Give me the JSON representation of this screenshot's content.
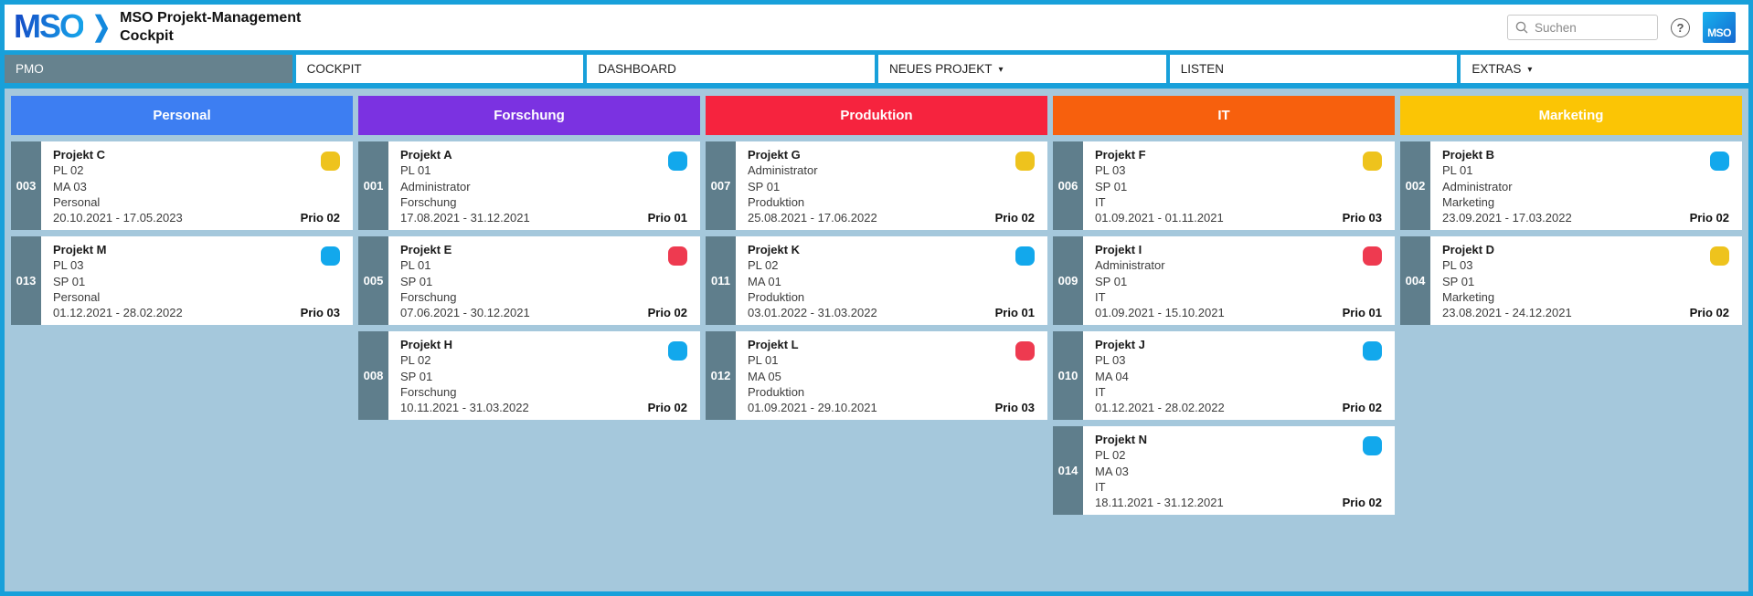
{
  "header": {
    "logo": "MSO",
    "title_line1": "MSO Projekt-Management",
    "title_line2": "Cockpit",
    "search_placeholder": "Suchen",
    "help_label": "?",
    "badge": "MSO"
  },
  "nav": {
    "items": [
      {
        "label": "PMO",
        "active": true,
        "dropdown": false
      },
      {
        "label": "COCKPIT",
        "active": false,
        "dropdown": false
      },
      {
        "label": "DASHBOARD",
        "active": false,
        "dropdown": false
      },
      {
        "label": "NEUES PROJEKT",
        "active": false,
        "dropdown": true
      },
      {
        "label": "LISTEN",
        "active": false,
        "dropdown": false
      },
      {
        "label": "EXTRAS",
        "active": false,
        "dropdown": true
      }
    ]
  },
  "colors": {
    "chrome_blue": "#18a0da",
    "board_background": "#a5c8dc",
    "badge_strip": "#5f7e8c",
    "status_yellow": "#eec31d",
    "status_blue": "#12a8ec",
    "status_red": "#ee3a50"
  },
  "board": {
    "columns": [
      {
        "title": "Personal",
        "color": "#3d7ef2",
        "cards": [
          {
            "id": "003",
            "title": "Projekt C",
            "lines": [
              "PL 02",
              "MA 03",
              "Personal"
            ],
            "dates": "20.10.2021 - 17.05.2023",
            "prio": "Prio 02",
            "status": "yellow",
            "status_color": "#eec31d"
          },
          {
            "id": "013",
            "title": "Projekt M",
            "lines": [
              "PL 03",
              "SP 01",
              "Personal"
            ],
            "dates": "01.12.2021 - 28.02.2022",
            "prio": "Prio 03",
            "status": "blue",
            "status_color": "#12a8ec"
          }
        ]
      },
      {
        "title": "Forschung",
        "color": "#7b32e1",
        "cards": [
          {
            "id": "001",
            "title": "Projekt A",
            "lines": [
              "PL 01",
              "Administrator",
              "Forschung"
            ],
            "dates": "17.08.2021 - 31.12.2021",
            "prio": "Prio 01",
            "status": "blue",
            "status_color": "#12a8ec"
          },
          {
            "id": "005",
            "title": "Projekt E",
            "lines": [
              "PL 01",
              "SP 01",
              "Forschung"
            ],
            "dates": "07.06.2021 - 30.12.2021",
            "prio": "Prio 02",
            "status": "red",
            "status_color": "#ee3a50"
          },
          {
            "id": "008",
            "title": "Projekt H",
            "lines": [
              "PL 02",
              "SP 01",
              "Forschung"
            ],
            "dates": "10.11.2021 - 31.03.2022",
            "prio": "Prio 02",
            "status": "blue",
            "status_color": "#12a8ec"
          }
        ]
      },
      {
        "title": "Produktion",
        "color": "#f6233e",
        "cards": [
          {
            "id": "007",
            "title": "Projekt G",
            "lines": [
              "Administrator",
              "SP 01",
              "Produktion"
            ],
            "dates": "25.08.2021 - 17.06.2022",
            "prio": "Prio 02",
            "status": "yellow",
            "status_color": "#eec31d"
          },
          {
            "id": "011",
            "title": "Projekt K",
            "lines": [
              "PL 02",
              "MA 01",
              "Produktion"
            ],
            "dates": "03.01.2022 - 31.03.2022",
            "prio": "Prio 01",
            "status": "blue",
            "status_color": "#12a8ec"
          },
          {
            "id": "012",
            "title": "Projekt L",
            "lines": [
              "PL 01",
              "MA 05",
              "Produktion"
            ],
            "dates": "01.09.2021 - 29.10.2021",
            "prio": "Prio 03",
            "status": "red",
            "status_color": "#ee3a50"
          }
        ]
      },
      {
        "title": "IT",
        "color": "#f7600d",
        "cards": [
          {
            "id": "006",
            "title": "Projekt F",
            "lines": [
              "PL 03",
              "SP 01",
              "IT"
            ],
            "dates": "01.09.2021 - 01.11.2021",
            "prio": "Prio 03",
            "status": "yellow",
            "status_color": "#eec31d"
          },
          {
            "id": "009",
            "title": "Projekt I",
            "lines": [
              "Administrator",
              "SP 01",
              "IT"
            ],
            "dates": "01.09.2021 - 15.10.2021",
            "prio": "Prio 01",
            "status": "red",
            "status_color": "#ee3a50"
          },
          {
            "id": "010",
            "title": "Projekt J",
            "lines": [
              "PL 03",
              "MA 04",
              "IT"
            ],
            "dates": "01.12.2021 - 28.02.2022",
            "prio": "Prio 02",
            "status": "blue",
            "status_color": "#12a8ec"
          },
          {
            "id": "014",
            "title": "Projekt N",
            "lines": [
              "PL 02",
              "MA 03",
              "IT"
            ],
            "dates": "18.11.2021 - 31.12.2021",
            "prio": "Prio 02",
            "status": "blue",
            "status_color": "#12a8ec"
          }
        ]
      },
      {
        "title": "Marketing",
        "color": "#fbc505",
        "cards": [
          {
            "id": "002",
            "title": "Projekt B",
            "lines": [
              "PL 01",
              "Administrator",
              "Marketing"
            ],
            "dates": "23.09.2021 - 17.03.2022",
            "prio": "Prio 02",
            "status": "blue",
            "status_color": "#12a8ec"
          },
          {
            "id": "004",
            "title": "Projekt D",
            "lines": [
              "PL 03",
              "SP 01",
              "Marketing"
            ],
            "dates": "23.08.2021 - 24.12.2021",
            "prio": "Prio 02",
            "status": "yellow",
            "status_color": "#eec31d"
          }
        ]
      }
    ]
  }
}
